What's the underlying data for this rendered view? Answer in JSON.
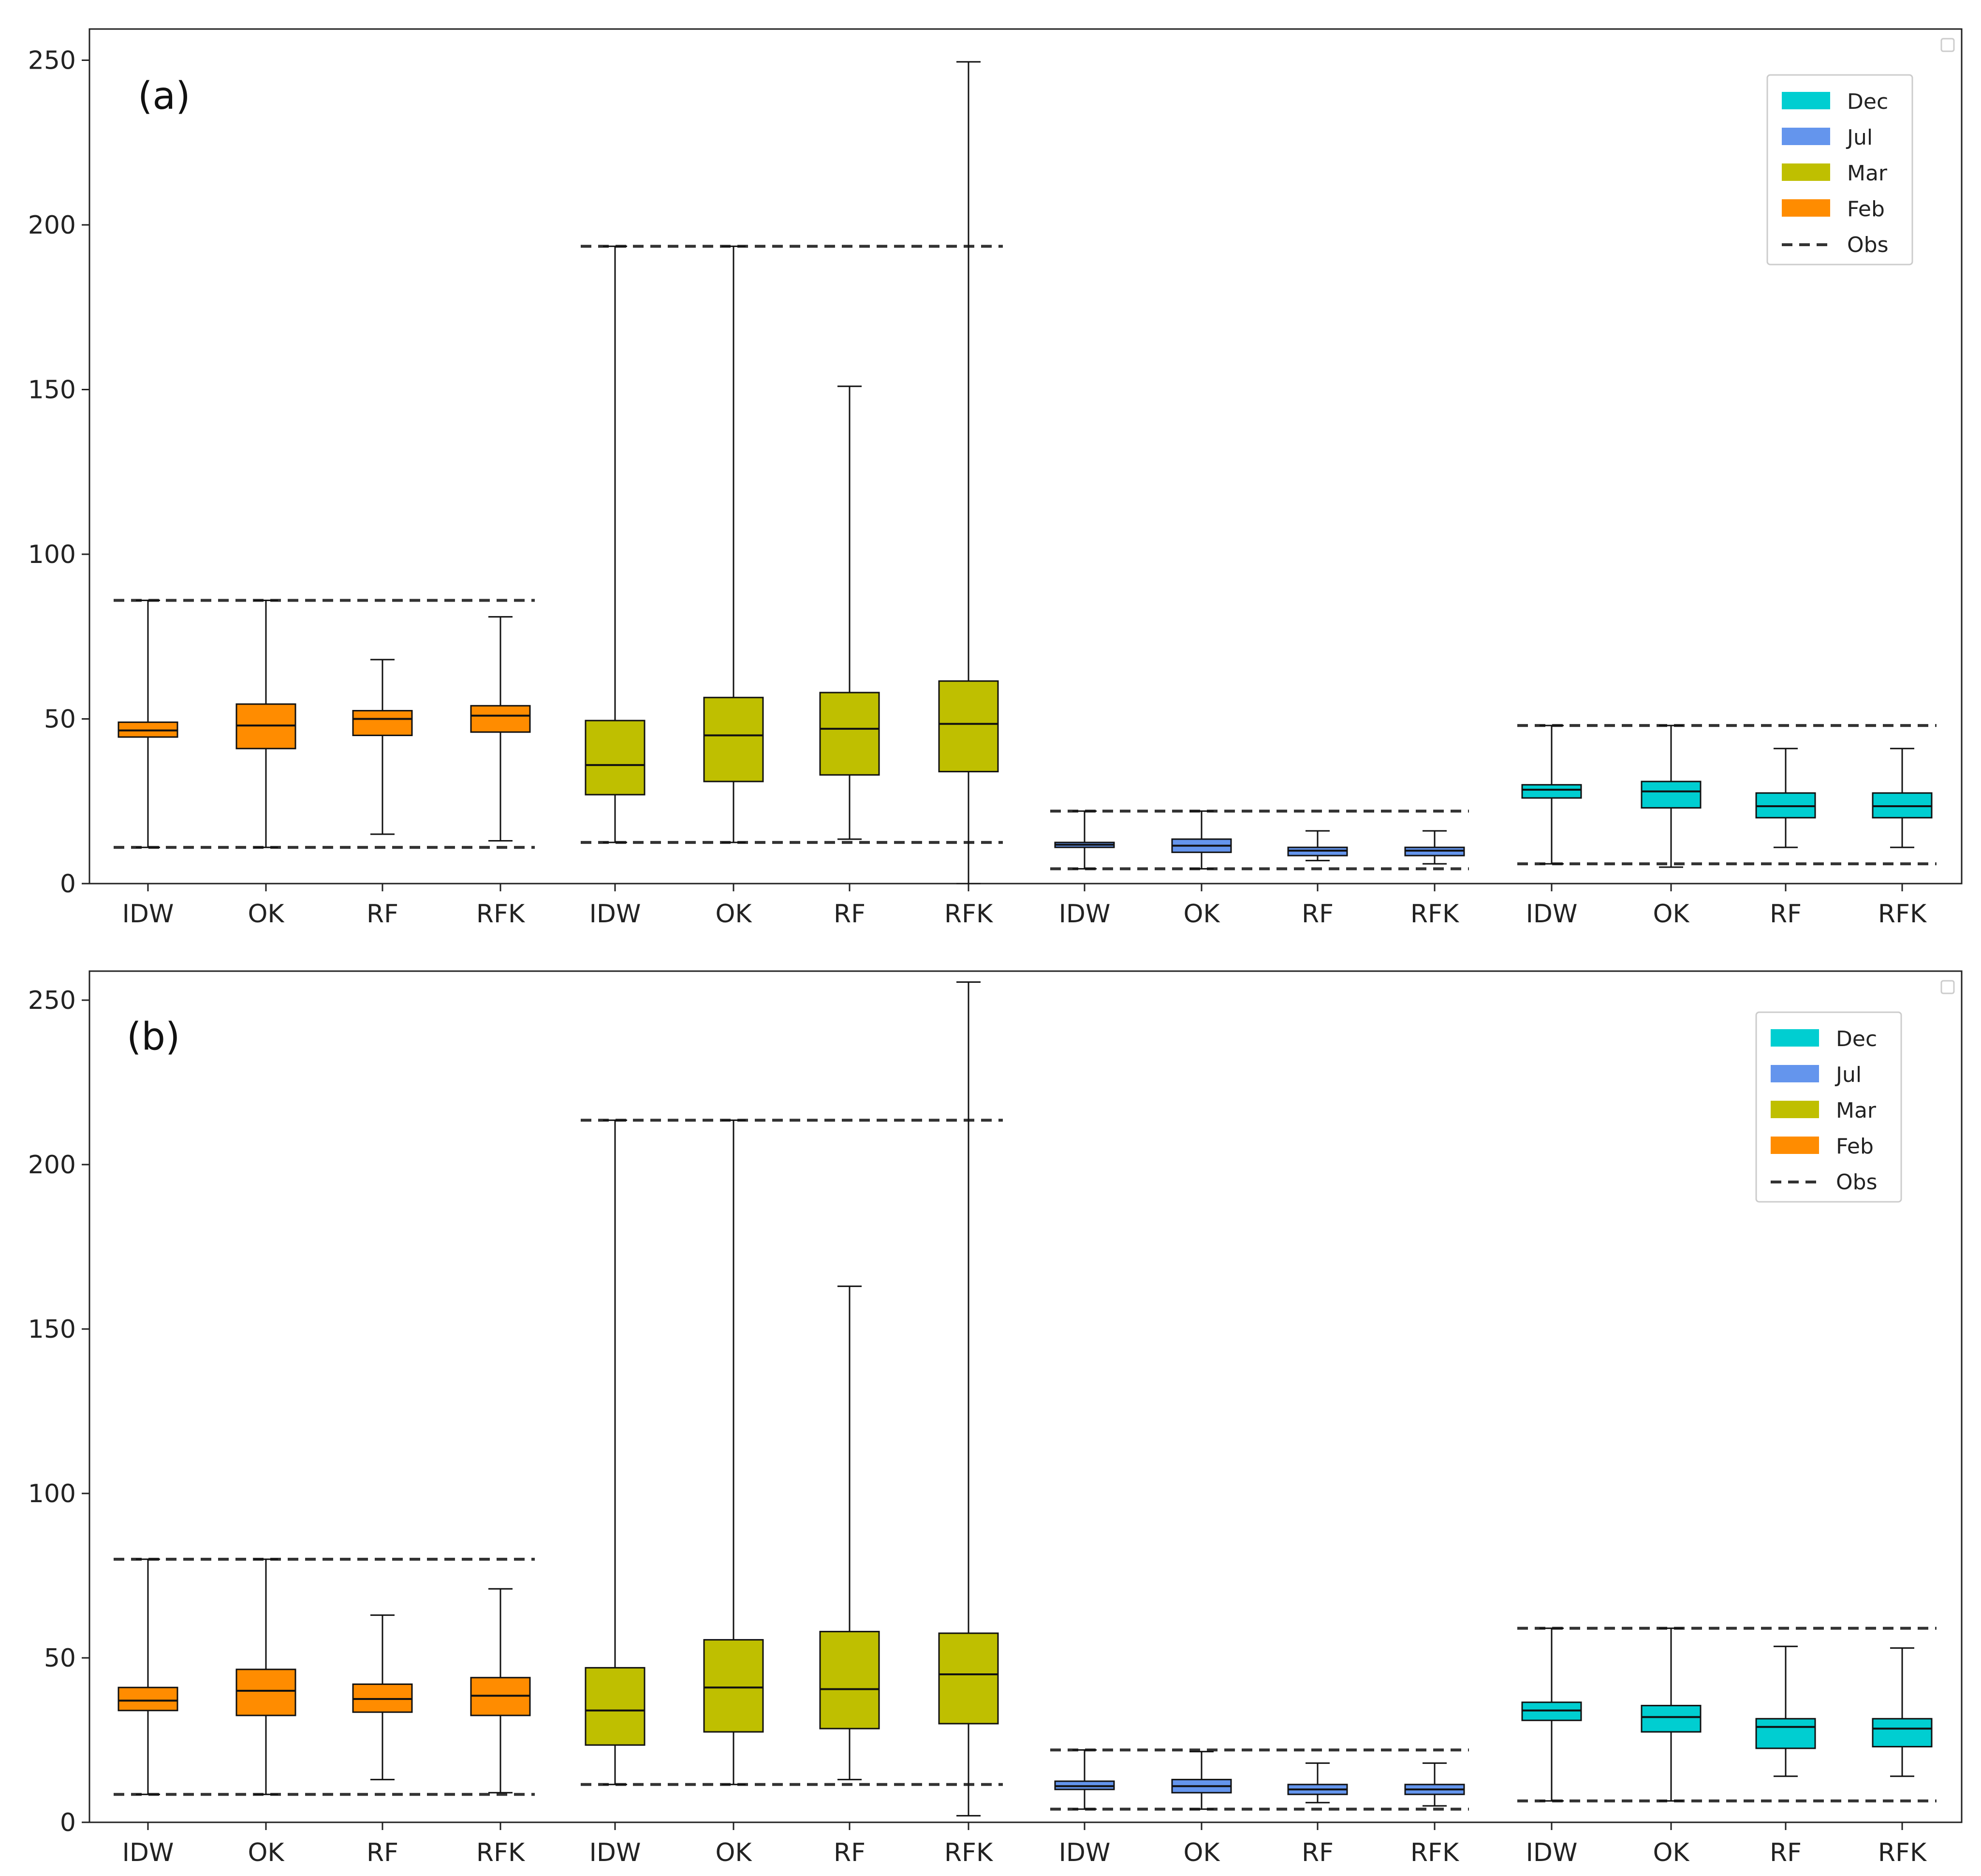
{
  "colors": {
    "Feb": "#ff8c00",
    "Mar": "#bfbf00",
    "Jul": "#6495ed",
    "Dec": "#00ced1",
    "obs": "#333333",
    "frame": "#222222"
  },
  "legend": {
    "placement": "top-right",
    "items": [
      {
        "label": "Dec",
        "kind": "patch",
        "color_key": "Dec"
      },
      {
        "label": "Jul",
        "kind": "patch",
        "color_key": "Jul"
      },
      {
        "label": "Mar",
        "kind": "patch",
        "color_key": "Mar"
      },
      {
        "label": "Feb",
        "kind": "patch",
        "color_key": "Feb"
      },
      {
        "label": "Obs",
        "kind": "dashed-line",
        "color_key": "obs"
      }
    ]
  },
  "chart_data": [
    {
      "type": "box",
      "panel_label": "(a)",
      "title": "",
      "xlabel": "",
      "ylabel": "",
      "ylim": [
        0,
        260
      ],
      "yticks": [
        0,
        50,
        100,
        150,
        200,
        250
      ],
      "grid": false,
      "categories": [
        "IDW",
        "OK",
        "RF",
        "RFK",
        "IDW",
        "OK",
        "RF",
        "RFK",
        "IDW",
        "OK",
        "RF",
        "RFK",
        "IDW",
        "OK",
        "RF",
        "RFK"
      ],
      "groups": [
        {
          "month": "Feb",
          "obs": {
            "min": 11,
            "max": 86
          },
          "boxes": [
            {
              "method": "IDW",
              "whislo": 11,
              "q1": 44.5,
              "med": 46.5,
              "q3": 49,
              "whishi": 86
            },
            {
              "method": "OK",
              "whislo": 11,
              "q1": 41,
              "med": 48,
              "q3": 54.5,
              "whishi": 86
            },
            {
              "method": "RF",
              "whislo": 15,
              "q1": 45,
              "med": 50,
              "q3": 52.5,
              "whishi": 68
            },
            {
              "method": "RFK",
              "whislo": 13,
              "q1": 46,
              "med": 51,
              "q3": 54,
              "whishi": 81
            }
          ]
        },
        {
          "month": "Mar",
          "obs": {
            "min": 12.5,
            "max": 193.5
          },
          "boxes": [
            {
              "method": "IDW",
              "whislo": 12.5,
              "q1": 27,
              "med": 36,
              "q3": 49.5,
              "whishi": 193.5
            },
            {
              "method": "OK",
              "whislo": 12.5,
              "q1": 31,
              "med": 45,
              "q3": 56.5,
              "whishi": 193.5
            },
            {
              "method": "RF",
              "whislo": 13.5,
              "q1": 33,
              "med": 47,
              "q3": 58,
              "whishi": 151
            },
            {
              "method": "RFK",
              "whislo": 0,
              "q1": 34,
              "med": 48.5,
              "q3": 61.5,
              "whishi": 249.5
            }
          ]
        },
        {
          "month": "Jul",
          "obs": {
            "min": 4.5,
            "max": 22
          },
          "boxes": [
            {
              "method": "IDW",
              "whislo": 4.5,
              "q1": 11,
              "med": 11.8,
              "q3": 12.5,
              "whishi": 22
            },
            {
              "method": "OK",
              "whislo": 4.5,
              "q1": 9.5,
              "med": 11.5,
              "q3": 13.5,
              "whishi": 22
            },
            {
              "method": "RF",
              "whislo": 7,
              "q1": 8.5,
              "med": 10,
              "q3": 11,
              "whishi": 16
            },
            {
              "method": "RFK",
              "whislo": 6,
              "q1": 8.5,
              "med": 10,
              "q3": 11,
              "whishi": 16
            }
          ]
        },
        {
          "month": "Dec",
          "obs": {
            "min": 6,
            "max": 48
          },
          "boxes": [
            {
              "method": "IDW",
              "whislo": 6,
              "q1": 26,
              "med": 28.5,
              "q3": 30,
              "whishi": 48
            },
            {
              "method": "OK",
              "whislo": 5,
              "q1": 23,
              "med": 28,
              "q3": 31,
              "whishi": 48
            },
            {
              "method": "RF",
              "whislo": 11,
              "q1": 20,
              "med": 23.5,
              "q3": 27.5,
              "whishi": 41
            },
            {
              "method": "RFK",
              "whislo": 11,
              "q1": 20,
              "med": 23.5,
              "q3": 27.5,
              "whishi": 41
            }
          ]
        }
      ]
    },
    {
      "type": "box",
      "panel_label": "(b)",
      "title": "",
      "xlabel": "",
      "ylabel": "",
      "ylim": [
        0,
        260
      ],
      "yticks": [
        0,
        50,
        100,
        150,
        200,
        250
      ],
      "grid": false,
      "categories": [
        "IDW",
        "OK",
        "RF",
        "RFK",
        "IDW",
        "OK",
        "RF",
        "RFK",
        "IDW",
        "OK",
        "RF",
        "RFK",
        "IDW",
        "OK",
        "RF",
        "RFK"
      ],
      "groups": [
        {
          "month": "Feb",
          "obs": {
            "min": 8.5,
            "max": 80
          },
          "boxes": [
            {
              "method": "IDW",
              "whislo": 8.5,
              "q1": 34,
              "med": 37,
              "q3": 41,
              "whishi": 80
            },
            {
              "method": "OK",
              "whislo": 8.5,
              "q1": 32.5,
              "med": 40,
              "q3": 46.5,
              "whishi": 80
            },
            {
              "method": "RF",
              "whislo": 13,
              "q1": 33.5,
              "med": 37.5,
              "q3": 42,
              "whishi": 63
            },
            {
              "method": "RFK",
              "whislo": 9,
              "q1": 32.5,
              "med": 38.5,
              "q3": 44,
              "whishi": 71
            }
          ]
        },
        {
          "month": "Mar",
          "obs": {
            "min": 11.5,
            "max": 213.5
          },
          "boxes": [
            {
              "method": "IDW",
              "whislo": 11.5,
              "q1": 23.5,
              "med": 34,
              "q3": 47,
              "whishi": 213.5
            },
            {
              "method": "OK",
              "whislo": 11.5,
              "q1": 27.5,
              "med": 41,
              "q3": 55.5,
              "whishi": 213.5
            },
            {
              "method": "RF",
              "whislo": 13,
              "q1": 28.5,
              "med": 40.5,
              "q3": 58,
              "whishi": 163
            },
            {
              "method": "RFK",
              "whislo": 2,
              "q1": 30,
              "med": 45,
              "q3": 57.5,
              "whishi": 255.5
            }
          ]
        },
        {
          "month": "Jul",
          "obs": {
            "min": 4,
            "max": 22
          },
          "boxes": [
            {
              "method": "IDW",
              "whislo": 4,
              "q1": 10,
              "med": 11,
              "q3": 12.5,
              "whishi": 22
            },
            {
              "method": "OK",
              "whislo": 4,
              "q1": 9,
              "med": 11,
              "q3": 13,
              "whishi": 21.5
            },
            {
              "method": "RF",
              "whislo": 6,
              "q1": 8.5,
              "med": 10,
              "q3": 11.5,
              "whishi": 18
            },
            {
              "method": "RFK",
              "whislo": 5,
              "q1": 8.5,
              "med": 10,
              "q3": 11.5,
              "whishi": 18
            }
          ]
        },
        {
          "month": "Dec",
          "obs": {
            "min": 6.5,
            "max": 59
          },
          "boxes": [
            {
              "method": "IDW",
              "whislo": 6.5,
              "q1": 31,
              "med": 34,
              "q3": 36.5,
              "whishi": 59
            },
            {
              "method": "OK",
              "whislo": 6.5,
              "q1": 27.5,
              "med": 32,
              "q3": 35.5,
              "whishi": 59
            },
            {
              "method": "RF",
              "whislo": 14,
              "q1": 22.5,
              "med": 29,
              "q3": 31.5,
              "whishi": 53.5
            },
            {
              "method": "RFK",
              "whislo": 14,
              "q1": 23,
              "med": 28.5,
              "q3": 31.5,
              "whishi": 53
            }
          ]
        }
      ]
    }
  ]
}
